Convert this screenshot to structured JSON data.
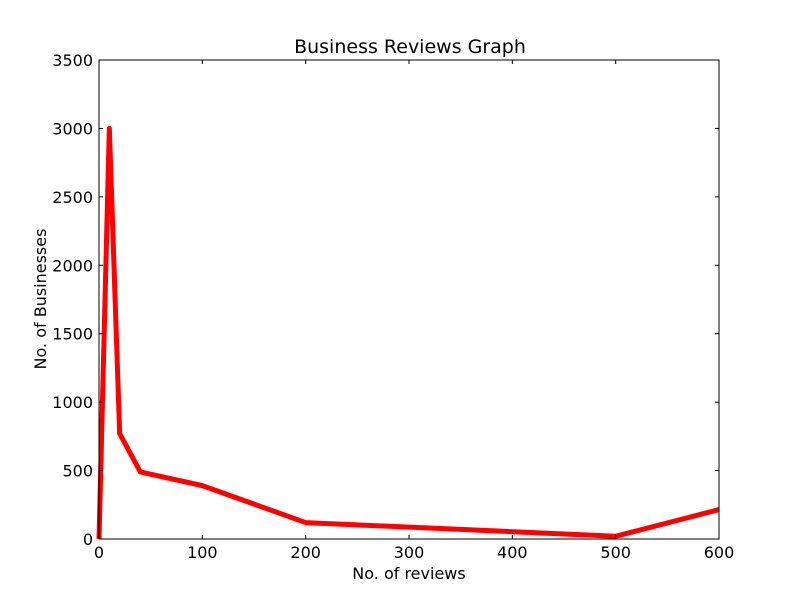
{
  "chart_data": {
    "type": "line",
    "title": "Business Reviews Graph",
    "xlabel": "No. of reviews",
    "ylabel": "No. of Businesses",
    "xlim": [
      0,
      600
    ],
    "ylim": [
      0,
      3500
    ],
    "xticks": [
      0,
      100,
      200,
      300,
      400,
      500,
      600
    ],
    "yticks": [
      0,
      500,
      1000,
      1500,
      2000,
      2500,
      3000,
      3500
    ],
    "grid": false,
    "series": [
      {
        "color": "#ff0000",
        "x": [
          0,
          10,
          20,
          40,
          100,
          200,
          500,
          600
        ],
        "y": [
          0,
          3000,
          770,
          490,
          390,
          120,
          20,
          215
        ]
      }
    ]
  }
}
